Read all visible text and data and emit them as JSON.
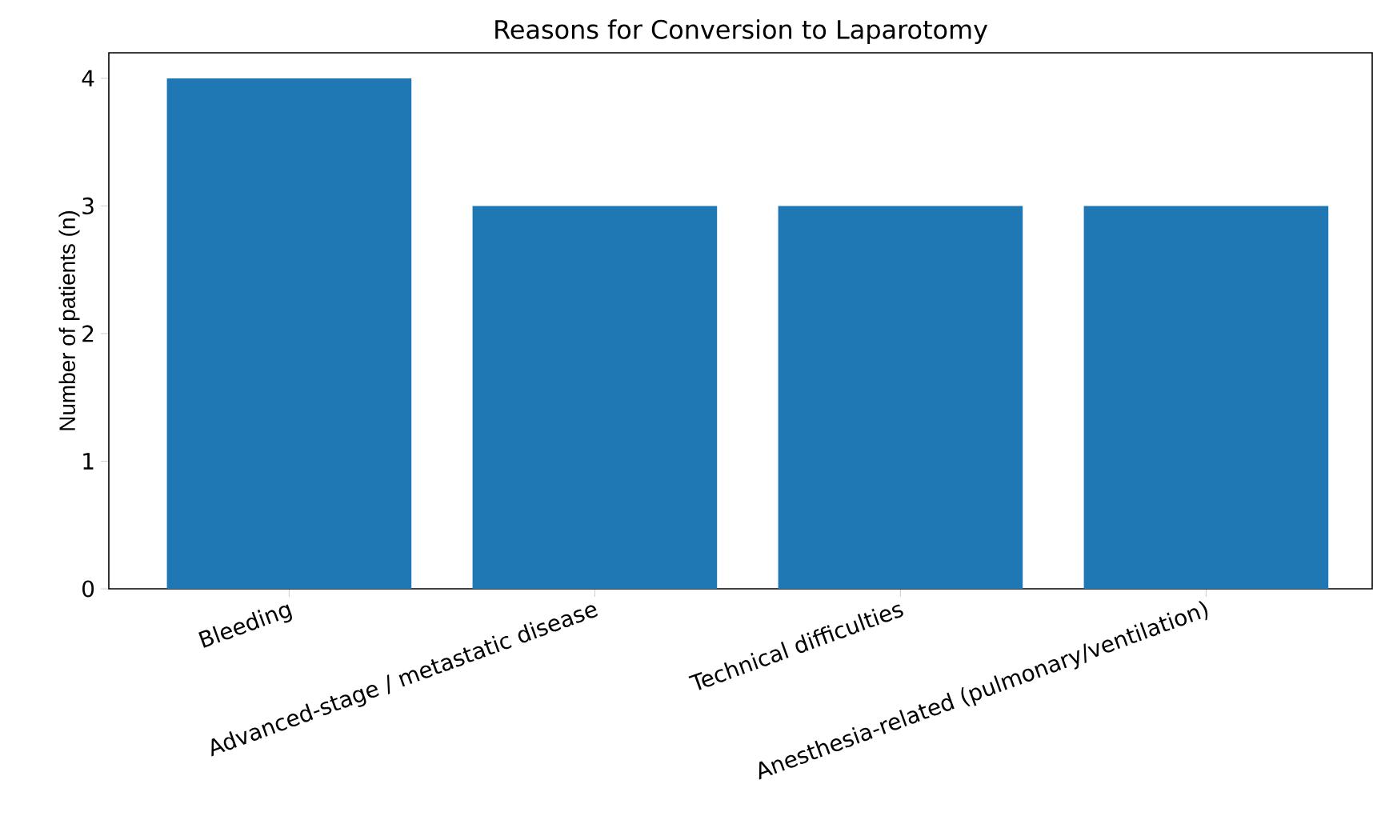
{
  "chart_data": {
    "type": "bar",
    "title": "Reasons for Conversion to Laparotomy",
    "ylabel": "Number of patients (n)",
    "categories": [
      "Bleeding",
      "Advanced-stage / metastatic disease",
      "Technical difficulties",
      "Anesthesia-related (pulmonary/ventilation)"
    ],
    "values": [
      4,
      3,
      3,
      3
    ],
    "color": "#1f77b4",
    "ylim": [
      0,
      4.2
    ],
    "yticks": [
      0,
      1,
      2,
      3,
      4
    ],
    "grid": false
  }
}
